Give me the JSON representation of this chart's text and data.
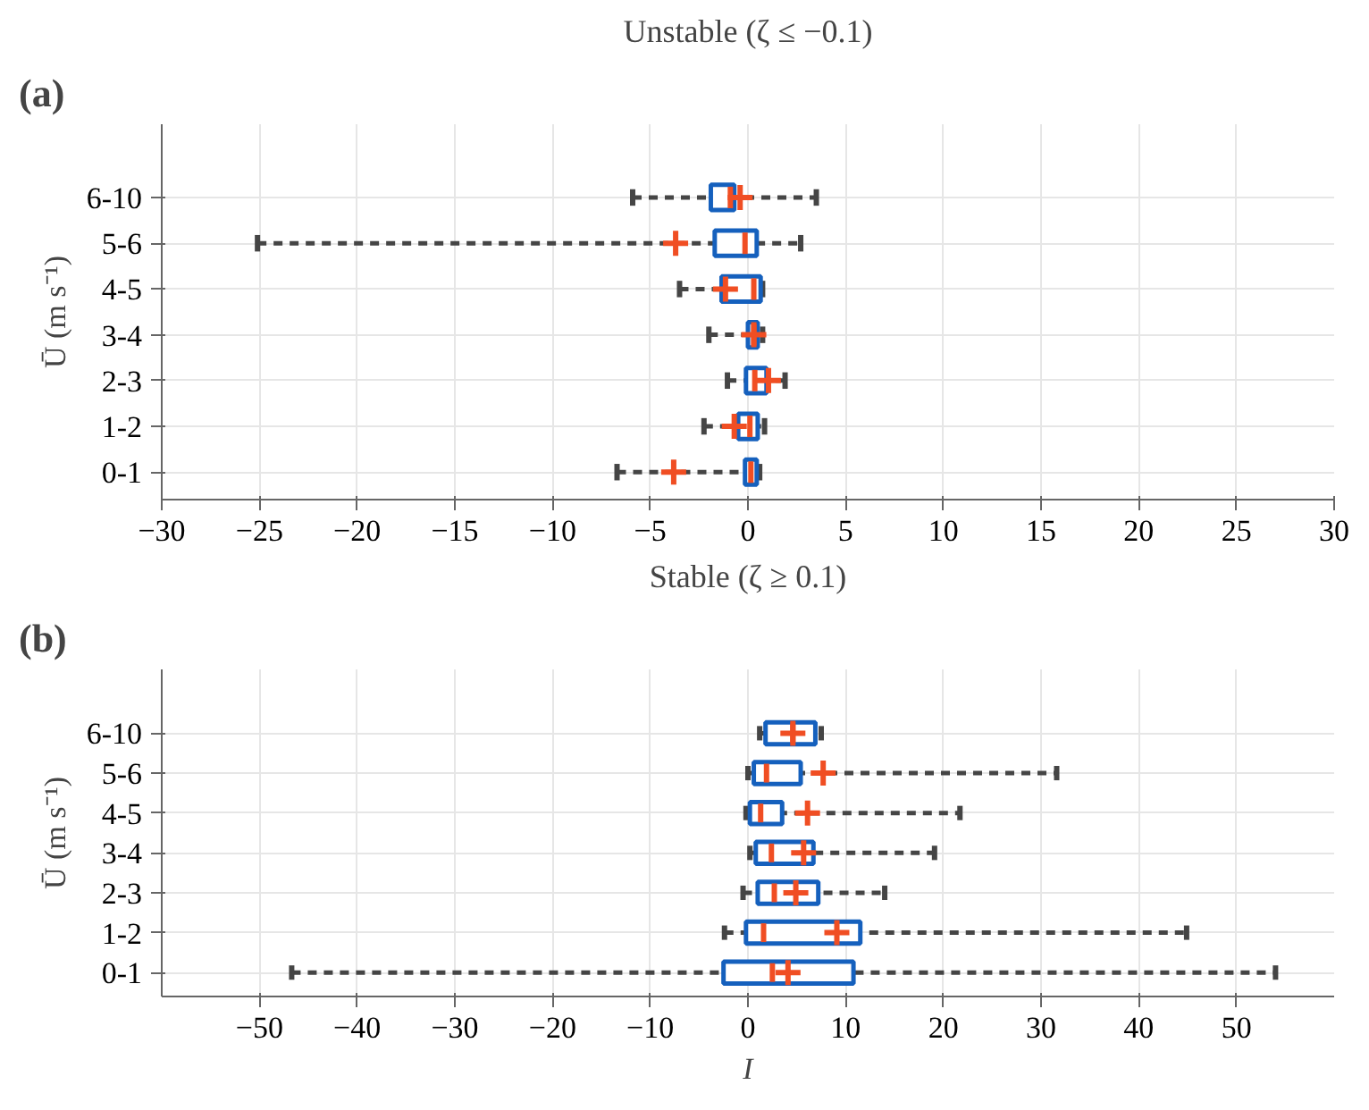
{
  "chart_data": [
    {
      "type": "box",
      "title": "Unstable (ζ ≤ −0.1)",
      "ylabel": "Ū (m s⁻¹)",
      "annotations": [
        "(a)"
      ],
      "orientation": "horizontal",
      "categories": [
        "6-10",
        "5-6",
        "4-5",
        "3-4",
        "2-3",
        "1-2",
        "0-1"
      ],
      "xlim": [
        -30,
        30
      ],
      "xticks": [
        -30,
        -25,
        -20,
        -15,
        -10,
        -5,
        0,
        5,
        10,
        15,
        20,
        25,
        30
      ],
      "grid": true,
      "marker": "cross",
      "series": [
        {
          "color": "#1560bd",
          "boxes": [
            {
              "low": -5.9,
              "q1": -1.9,
              "median": -0.9,
              "q3": -0.7,
              "high": 3.5,
              "mean": -0.4
            },
            {
              "low": -25.1,
              "q1": -1.7,
              "median": -0.15,
              "q3": 0.45,
              "high": 2.7,
              "mean": -3.7
            },
            {
              "low": -3.5,
              "q1": -1.35,
              "median": 0.3,
              "q3": 0.65,
              "high": 0.75,
              "mean": -1.15
            },
            {
              "low": -2.0,
              "q1": 0.0,
              "median": 0.3,
              "q3": 0.5,
              "high": 0.75,
              "mean": 0.3
            },
            {
              "low": -1.05,
              "q1": -0.1,
              "median": 0.35,
              "q3": 0.95,
              "high": 1.9,
              "mean": 1.05
            },
            {
              "low": -2.25,
              "q1": -0.5,
              "median": 0.1,
              "q3": 0.5,
              "high": 0.85,
              "mean": -0.7
            },
            {
              "low": -6.7,
              "q1": -0.15,
              "median": 0.15,
              "q3": 0.45,
              "high": 0.6,
              "mean": -3.8
            }
          ]
        }
      ]
    },
    {
      "type": "box",
      "title": "Stable (ζ ≥ 0.1)",
      "xlabel": "I",
      "ylabel": "Ū (m s⁻¹)",
      "annotations": [
        "(b)"
      ],
      "orientation": "horizontal",
      "categories": [
        "6-10",
        "5-6",
        "4-5",
        "3-4",
        "2-3",
        "1-2",
        "0-1"
      ],
      "xlim": [
        -60,
        60
      ],
      "xticks": [
        -50,
        -40,
        -30,
        -20,
        -10,
        0,
        10,
        20,
        30,
        40,
        50
      ],
      "grid": true,
      "marker": "cross",
      "series": [
        {
          "color": "#1560bd",
          "boxes": [
            {
              "low": 1.2,
              "q1": 1.8,
              "median": 4.6,
              "q3": 6.9,
              "high": 7.5,
              "mean": 4.6
            },
            {
              "low": 0.0,
              "q1": 0.6,
              "median": 1.9,
              "q3": 5.4,
              "high": 31.6,
              "mean": 7.7
            },
            {
              "low": -0.2,
              "q1": 0.2,
              "median": 1.3,
              "q3": 3.5,
              "high": 21.7,
              "mean": 6.1
            },
            {
              "low": 0.2,
              "q1": 0.8,
              "median": 2.4,
              "q3": 6.7,
              "high": 19.1,
              "mean": 5.7
            },
            {
              "low": -0.5,
              "q1": 1.0,
              "median": 2.7,
              "q3": 7.2,
              "high": 14.0,
              "mean": 4.9
            },
            {
              "low": -2.4,
              "q1": -0.2,
              "median": 1.6,
              "q3": 11.5,
              "high": 44.9,
              "mean": 9.1
            },
            {
              "low": -46.7,
              "q1": -2.5,
              "median": 2.5,
              "q3": 10.8,
              "high": 54.0,
              "mean": 4.1
            }
          ]
        }
      ]
    }
  ]
}
